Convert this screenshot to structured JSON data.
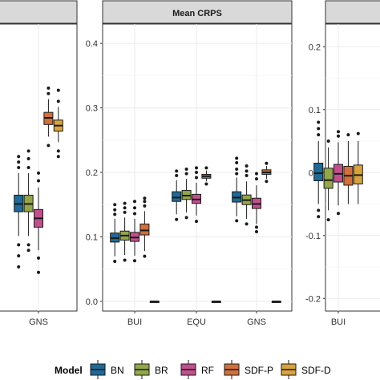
{
  "colors": {
    "BN": "#1f6a96",
    "BR": "#93a64a",
    "RF": "#c0508c",
    "SDF-P": "#d0703c",
    "SDF-D": "#d8a33e",
    "strip_fill": "#d9d9d9",
    "panel_bg": "#ffffff",
    "grid": "#ebebeb",
    "axis_text": "#333333"
  },
  "legend": {
    "title": "Model",
    "entries": [
      "BN",
      "BR",
      "RF",
      "SDF-P",
      "SDF-D"
    ],
    "position": "bottom"
  },
  "chart_data": [
    {
      "type": "boxplot",
      "title": "",
      "categories": [
        "GNS"
      ],
      "series_order": [
        "BN",
        "BR",
        "RF",
        "SDF-P",
        "SDF-D"
      ],
      "ylim": [
        0.18,
        0.44
      ],
      "yticks": [],
      "grid": true,
      "boxes": {
        "GNS": [
          {
            "model": "BN",
            "q1": 0.27,
            "median": 0.277,
            "q3": 0.285,
            "wlo": 0.248,
            "whi": 0.305,
            "outliers": [
              0.24,
              0.23,
              0.22,
              0.31,
              0.315,
              0.32
            ]
          },
          {
            "model": "BR",
            "q1": 0.27,
            "median": 0.277,
            "q3": 0.285,
            "wlo": 0.248,
            "whi": 0.305,
            "outliers": [
              0.24,
              0.235,
              0.31,
              0.318,
              0.325
            ]
          },
          {
            "model": "RF",
            "q1": 0.256,
            "median": 0.264,
            "q3": 0.272,
            "wlo": 0.235,
            "whi": 0.292,
            "outliers": [
              0.228,
              0.215,
              0.298,
              0.305
            ]
          },
          {
            "model": "SDF-P",
            "q1": 0.349,
            "median": 0.355,
            "q3": 0.36,
            "wlo": 0.338,
            "whi": 0.372,
            "outliers": [
              0.33,
              0.377,
              0.382
            ]
          },
          {
            "model": "SDF-D",
            "q1": 0.343,
            "median": 0.348,
            "q3": 0.353,
            "wlo": 0.333,
            "whi": 0.365,
            "outliers": [
              0.325,
              0.32,
              0.37,
              0.38
            ]
          }
        ]
      }
    },
    {
      "type": "boxplot",
      "title": "Mean CRPS",
      "categories": [
        "BUI",
        "EQU",
        "GNS"
      ],
      "series_order": [
        "BN",
        "BR",
        "RF",
        "SDF-P",
        "SDF-D"
      ],
      "ylim": [
        -0.015,
        0.43
      ],
      "yticks": [
        "0.0",
        "0.1",
        "0.2",
        "0.3",
        "0.4"
      ],
      "grid": true,
      "boxes": {
        "BUI": [
          {
            "model": "BN",
            "q1": 0.092,
            "median": 0.098,
            "q3": 0.106,
            "wlo": 0.07,
            "whi": 0.128,
            "outliers": [
              0.062,
              0.135,
              0.142,
              0.15
            ]
          },
          {
            "model": "BR",
            "q1": 0.095,
            "median": 0.102,
            "q3": 0.109,
            "wlo": 0.072,
            "whi": 0.13,
            "outliers": [
              0.064,
              0.138,
              0.145,
              0.152
            ]
          },
          {
            "model": "RF",
            "q1": 0.093,
            "median": 0.099,
            "q3": 0.107,
            "wlo": 0.071,
            "whi": 0.128,
            "outliers": [
              0.063,
              0.136,
              0.145,
              0.155
            ]
          },
          {
            "model": "SDF-P",
            "q1": 0.103,
            "median": 0.11,
            "q3": 0.12,
            "wlo": 0.078,
            "whi": 0.14,
            "outliers": [
              0.07,
              0.148,
              0.155,
              0.16
            ]
          },
          {
            "model": "SDF-D",
            "q1": 0.0,
            "median": 0.0,
            "q3": 0.0,
            "wlo": 0.0,
            "whi": 0.0,
            "outliers": []
          }
        ],
        "EQU": [
          {
            "model": "BN",
            "q1": 0.155,
            "median": 0.161,
            "q3": 0.17,
            "wlo": 0.135,
            "whi": 0.188,
            "outliers": [
              0.127,
              0.195,
              0.202
            ]
          },
          {
            "model": "BR",
            "q1": 0.158,
            "median": 0.164,
            "q3": 0.172,
            "wlo": 0.138,
            "whi": 0.19,
            "outliers": [
              0.13,
              0.198,
              0.205
            ]
          },
          {
            "model": "RF",
            "q1": 0.152,
            "median": 0.158,
            "q3": 0.166,
            "wlo": 0.133,
            "whi": 0.184,
            "outliers": [
              0.124,
              0.192,
              0.2,
              0.207
            ]
          },
          {
            "model": "SDF-P",
            "q1": 0.191,
            "median": 0.194,
            "q3": 0.197,
            "wlo": 0.186,
            "whi": 0.203,
            "outliers": [
              0.182,
              0.207
            ]
          },
          {
            "model": "SDF-D",
            "q1": 0.0,
            "median": 0.0,
            "q3": 0.0,
            "wlo": 0.0,
            "whi": 0.0,
            "outliers": []
          }
        ],
        "GNS": [
          {
            "model": "BN",
            "q1": 0.154,
            "median": 0.161,
            "q3": 0.17,
            "wlo": 0.132,
            "whi": 0.192,
            "outliers": [
              0.125,
              0.198,
              0.205,
              0.215,
              0.222
            ]
          },
          {
            "model": "BR",
            "q1": 0.15,
            "median": 0.157,
            "q3": 0.165,
            "wlo": 0.128,
            "whi": 0.186,
            "outliers": [
              0.12,
              0.195,
              0.202,
              0.21
            ]
          },
          {
            "model": "RF",
            "q1": 0.144,
            "median": 0.151,
            "q3": 0.16,
            "wlo": 0.12,
            "whi": 0.18,
            "outliers": [
              0.115,
              0.108,
              0.19,
              0.198
            ]
          },
          {
            "model": "SDF-P",
            "q1": 0.197,
            "median": 0.2,
            "q3": 0.204,
            "wlo": 0.19,
            "whi": 0.21,
            "outliers": [
              0.186,
              0.214
            ]
          },
          {
            "model": "SDF-D",
            "q1": 0.0,
            "median": 0.0,
            "q3": 0.0,
            "wlo": 0.0,
            "whi": 0.0,
            "outliers": []
          }
        ]
      }
    },
    {
      "type": "boxplot",
      "title": "",
      "categories": [
        "BUI"
      ],
      "series_order": [
        "BN",
        "BR",
        "RF",
        "SDF-P",
        "SDF-D"
      ],
      "ylim": [
        -0.22,
        0.236
      ],
      "yticks": [
        "-0.2",
        "-0.1",
        "0.0",
        "0.1",
        "0.2"
      ],
      "grid": true,
      "boxes": {
        "BUI": [
          {
            "model": "BN",
            "q1": -0.013,
            "median": -0.001,
            "q3": 0.015,
            "wlo": -0.05,
            "whi": 0.05,
            "outliers": [
              -0.06,
              -0.07,
              0.06,
              0.07,
              0.08
            ]
          },
          {
            "model": "BR",
            "q1": -0.025,
            "median": -0.012,
            "q3": 0.007,
            "wlo": -0.06,
            "whi": 0.04,
            "outliers": [
              -0.075,
              0.05
            ]
          },
          {
            "model": "RF",
            "q1": -0.015,
            "median": -0.002,
            "q3": 0.013,
            "wlo": -0.052,
            "whi": 0.048,
            "outliers": [
              -0.065,
              0.058,
              0.065
            ]
          },
          {
            "model": "SDF-P",
            "q1": -0.02,
            "median": -0.005,
            "q3": 0.01,
            "wlo": -0.05,
            "whi": 0.05,
            "outliers": [
              0.06
            ]
          },
          {
            "model": "SDF-D",
            "q1": -0.018,
            "median": -0.004,
            "q3": 0.012,
            "wlo": -0.05,
            "whi": 0.05,
            "outliers": [
              0.062
            ]
          }
        ]
      }
    }
  ]
}
